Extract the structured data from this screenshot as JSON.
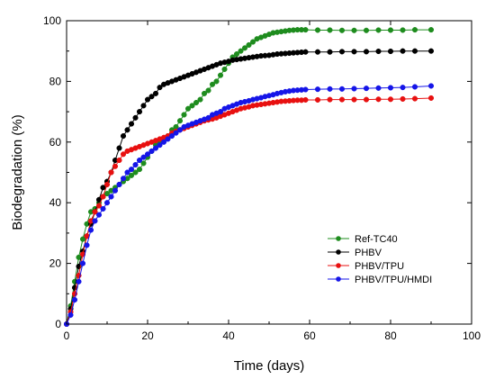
{
  "chart_data": {
    "type": "line",
    "xlabel": "Time (days)",
    "ylabel": "Biodegradation (%)",
    "xlim": [
      0,
      100
    ],
    "ylim": [
      0,
      100
    ],
    "xticks": [
      0,
      20,
      40,
      60,
      80,
      100
    ],
    "yticks": [
      0,
      20,
      40,
      60,
      80,
      100
    ],
    "legend_position": "bottom-right",
    "grid": false,
    "series": [
      {
        "name": "Ref-TC40",
        "color": "#1e8c1e",
        "x": [
          0,
          1,
          2,
          3,
          4,
          5,
          6,
          7,
          8,
          9,
          10,
          11,
          12,
          13,
          14,
          15,
          16,
          17,
          18,
          19,
          20,
          21,
          22,
          23,
          24,
          25,
          26,
          27,
          28,
          29,
          30,
          31,
          32,
          33,
          34,
          35,
          36,
          37,
          38,
          39,
          40,
          41,
          42,
          43,
          44,
          45,
          46,
          47,
          48,
          49,
          50,
          51,
          52,
          53,
          54,
          55,
          56,
          57,
          58,
          59,
          62,
          65,
          68,
          71,
          74,
          77,
          80,
          83,
          86,
          90
        ],
        "y": [
          0,
          6,
          14,
          22,
          28,
          33,
          37,
          38,
          40,
          42,
          43,
          44,
          45,
          46,
          47,
          48,
          49,
          50,
          51,
          53,
          55,
          57,
          59,
          60,
          61,
          62,
          64,
          65,
          67,
          69,
          71,
          72,
          73,
          74,
          76,
          77,
          79,
          80,
          82,
          84,
          86,
          88,
          89,
          90,
          91,
          92,
          93,
          94,
          94.5,
          95,
          95.5,
          96,
          96.2,
          96.4,
          96.6,
          96.8,
          96.9,
          97,
          97,
          97,
          96.9,
          96.9,
          96.8,
          96.8,
          96.8,
          96.9,
          96.9,
          96.9,
          97,
          97
        ]
      },
      {
        "name": "PHBV",
        "color": "#000000",
        "x": [
          0,
          1,
          2,
          3,
          4,
          5,
          6,
          7,
          8,
          9,
          10,
          11,
          12,
          13,
          14,
          15,
          16,
          17,
          18,
          19,
          20,
          21,
          22,
          23,
          24,
          25,
          26,
          27,
          28,
          29,
          30,
          31,
          32,
          33,
          34,
          35,
          36,
          37,
          38,
          39,
          40,
          41,
          42,
          43,
          44,
          45,
          46,
          47,
          48,
          49,
          50,
          51,
          52,
          53,
          54,
          55,
          56,
          57,
          58,
          59,
          62,
          65,
          68,
          71,
          74,
          77,
          80,
          83,
          86,
          90
        ],
        "y": [
          0,
          5,
          12,
          19,
          24,
          29,
          33,
          37,
          41,
          45,
          47,
          50,
          54,
          58,
          62,
          64,
          66,
          68,
          70,
          72,
          74,
          75,
          76,
          78,
          79,
          79.5,
          80,
          80.5,
          81,
          81.5,
          82,
          82.5,
          83,
          83.5,
          84,
          84.5,
          85,
          85.5,
          86,
          86.3,
          86.6,
          87,
          87.2,
          87.4,
          87.6,
          87.8,
          88,
          88.2,
          88.4,
          88.5,
          88.6,
          88.8,
          89,
          89.1,
          89.2,
          89.3,
          89.4,
          89.5,
          89.6,
          89.7,
          89.7,
          89.7,
          89.8,
          89.8,
          89.8,
          89.9,
          89.9,
          90,
          90,
          90
        ]
      },
      {
        "name": "PHBV/TPU",
        "color": "#e81010",
        "x": [
          0,
          1,
          2,
          3,
          4,
          5,
          6,
          7,
          8,
          9,
          10,
          11,
          12,
          13,
          14,
          15,
          16,
          17,
          18,
          19,
          20,
          21,
          22,
          23,
          24,
          25,
          26,
          27,
          28,
          29,
          30,
          31,
          32,
          33,
          34,
          35,
          36,
          37,
          38,
          39,
          40,
          41,
          42,
          43,
          44,
          45,
          46,
          47,
          48,
          49,
          50,
          51,
          52,
          53,
          54,
          55,
          56,
          57,
          58,
          59,
          62,
          65,
          68,
          71,
          74,
          77,
          80,
          83,
          86,
          90
        ],
        "y": [
          0,
          4,
          10,
          16,
          23,
          29,
          34,
          37,
          39,
          42,
          46,
          50,
          52,
          54,
          56,
          57,
          57.5,
          58,
          58.5,
          59,
          59.5,
          60,
          60.5,
          61,
          61.5,
          62,
          63,
          63.5,
          64,
          64.5,
          65,
          65.5,
          66,
          66.5,
          67,
          67.3,
          67.6,
          68,
          68.5,
          69,
          69.5,
          70,
          70.5,
          71,
          71.3,
          71.6,
          72,
          72.2,
          72.4,
          72.6,
          72.8,
          73,
          73.2,
          73.4,
          73.5,
          73.6,
          73.7,
          73.8,
          73.8,
          73.9,
          73.9,
          74,
          74,
          74,
          74,
          74.1,
          74.1,
          74.2,
          74.3,
          74.5
        ]
      },
      {
        "name": "PHBV/TPU/HMDI",
        "color": "#1515e8",
        "x": [
          0,
          1,
          2,
          3,
          4,
          5,
          6,
          7,
          8,
          9,
          10,
          11,
          12,
          13,
          14,
          15,
          16,
          17,
          18,
          19,
          20,
          21,
          22,
          23,
          24,
          25,
          26,
          27,
          28,
          29,
          30,
          31,
          32,
          33,
          34,
          35,
          36,
          37,
          38,
          39,
          40,
          41,
          42,
          43,
          44,
          45,
          46,
          47,
          48,
          49,
          50,
          51,
          52,
          53,
          54,
          55,
          56,
          57,
          58,
          59,
          62,
          65,
          68,
          71,
          74,
          77,
          80,
          83,
          86,
          90
        ],
        "y": [
          0,
          3,
          8,
          14,
          20,
          26,
          31,
          34,
          36,
          38,
          40,
          42,
          44,
          46,
          48,
          50,
          51,
          52.5,
          54,
          55,
          56,
          57,
          58,
          59,
          60,
          61,
          62,
          63,
          64,
          65,
          65.5,
          66,
          66.5,
          67,
          67.5,
          68,
          69,
          69.5,
          70,
          71,
          71.5,
          72,
          72.5,
          73,
          73.3,
          73.6,
          74,
          74.3,
          74.6,
          75,
          75.3,
          75.6,
          76,
          76.3,
          76.6,
          76.8,
          77,
          77.1,
          77.2,
          77.3,
          77.4,
          77.5,
          77.5,
          77.6,
          77.7,
          77.8,
          77.9,
          78,
          78.2,
          78.5
        ]
      }
    ]
  }
}
